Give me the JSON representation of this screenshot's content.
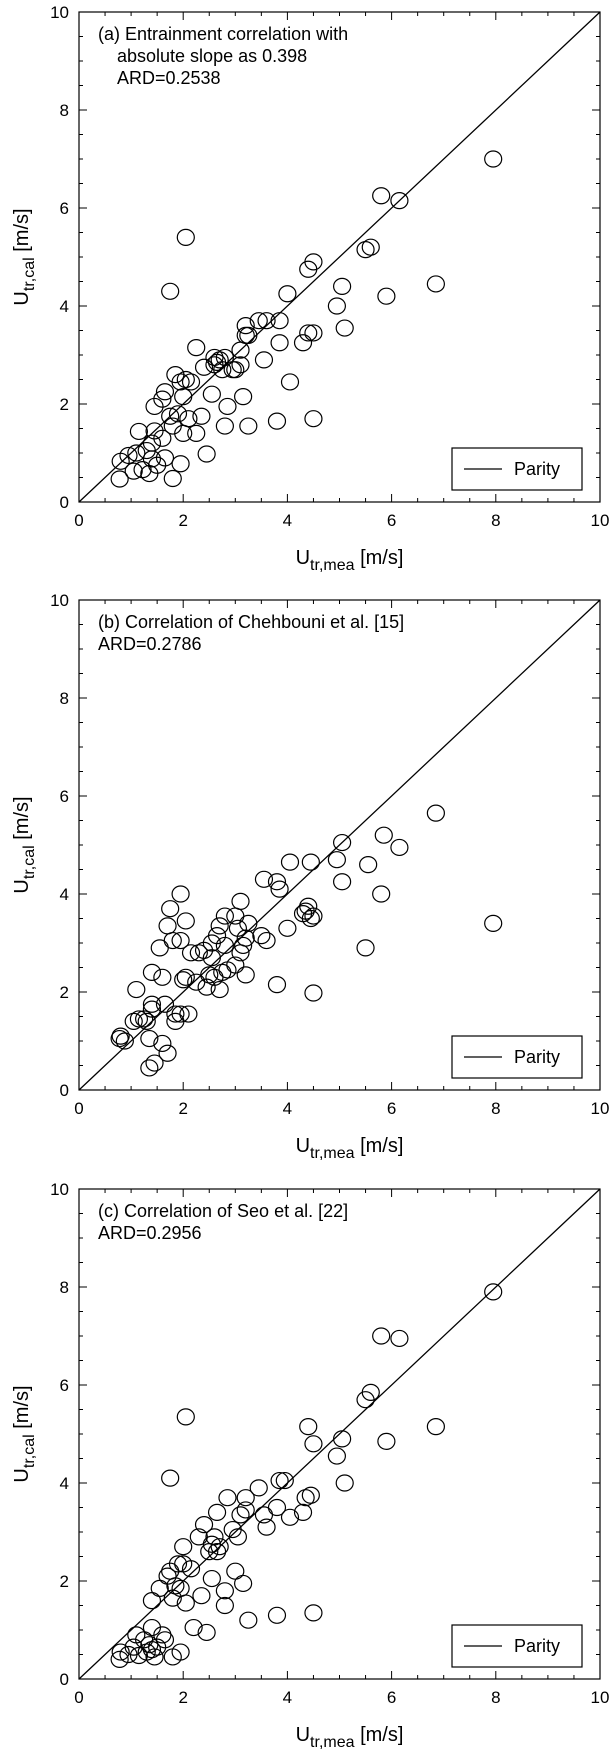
{
  "chart_data": [
    {
      "type": "scatter",
      "title": "(a) Entrainment correlation with",
      "subtitle": "absolute slope as 0.398",
      "annotation": "ARD=0.2538",
      "xlabel_main": "U",
      "xlabel_sub": "tr,mea",
      "xlabel_unit": "[m/s]",
      "ylabel_main": "U",
      "ylabel_sub": "tr,cal",
      "ylabel_unit": "[m/s]",
      "xlim": [
        0,
        10
      ],
      "ylim": [
        0,
        10
      ],
      "x_ticks": [
        "0",
        "2",
        "4",
        "6",
        "8",
        "10"
      ],
      "y_ticks": [
        "0",
        "2",
        "4",
        "6",
        "8",
        "10"
      ],
      "legend": {
        "label": "Parity",
        "placement": "bottom-right"
      },
      "parity_line": [
        [
          0,
          0
        ],
        [
          10,
          10
        ]
      ],
      "points": [
        [
          0.78,
          0.47
        ],
        [
          0.8,
          0.83
        ],
        [
          0.95,
          0.95
        ],
        [
          1.05,
          0.63
        ],
        [
          1.1,
          1.0
        ],
        [
          1.15,
          1.44
        ],
        [
          1.22,
          0.66
        ],
        [
          1.3,
          1.05
        ],
        [
          1.35,
          0.58
        ],
        [
          1.4,
          0.88
        ],
        [
          1.4,
          1.2
        ],
        [
          1.45,
          1.45
        ],
        [
          1.45,
          1.95
        ],
        [
          1.5,
          0.75
        ],
        [
          1.6,
          1.3
        ],
        [
          1.6,
          2.1
        ],
        [
          1.65,
          0.9
        ],
        [
          1.65,
          2.25
        ],
        [
          1.75,
          1.75
        ],
        [
          1.8,
          0.48
        ],
        [
          1.8,
          1.55
        ],
        [
          1.85,
          2.6
        ],
        [
          1.9,
          1.8
        ],
        [
          1.95,
          0.78
        ],
        [
          1.95,
          2.45
        ],
        [
          2.0,
          2.15
        ],
        [
          2.0,
          1.4
        ],
        [
          2.05,
          2.5
        ],
        [
          2.1,
          1.7
        ],
        [
          2.15,
          2.45
        ],
        [
          2.25,
          1.4
        ],
        [
          2.25,
          3.15
        ],
        [
          2.35,
          1.75
        ],
        [
          2.4,
          2.75
        ],
        [
          2.45,
          0.98
        ],
        [
          2.55,
          2.2
        ],
        [
          2.6,
          2.95
        ],
        [
          2.6,
          2.8
        ],
        [
          2.65,
          2.85
        ],
        [
          2.7,
          2.9
        ],
        [
          2.75,
          2.7
        ],
        [
          2.8,
          1.55
        ],
        [
          2.8,
          2.95
        ],
        [
          2.85,
          1.95
        ],
        [
          2.95,
          2.7
        ],
        [
          3.0,
          2.7
        ],
        [
          3.1,
          3.1
        ],
        [
          3.1,
          2.8
        ],
        [
          3.15,
          2.15
        ],
        [
          3.2,
          3.6
        ],
        [
          3.2,
          3.4
        ],
        [
          3.25,
          3.4
        ],
        [
          3.25,
          1.55
        ],
        [
          3.45,
          3.7
        ],
        [
          3.55,
          2.9
        ],
        [
          3.6,
          3.7
        ],
        [
          3.8,
          1.65
        ],
        [
          3.85,
          3.25
        ],
        [
          3.85,
          3.7
        ],
        [
          4.0,
          4.25
        ],
        [
          4.05,
          2.45
        ],
        [
          4.3,
          3.25
        ],
        [
          4.4,
          3.45
        ],
        [
          4.4,
          4.75
        ],
        [
          4.5,
          3.45
        ],
        [
          4.5,
          1.7
        ],
        [
          4.5,
          4.9
        ],
        [
          4.95,
          4.0
        ],
        [
          5.05,
          4.4
        ],
        [
          5.1,
          3.55
        ],
        [
          5.5,
          5.15
        ],
        [
          5.6,
          5.2
        ],
        [
          5.8,
          6.25
        ],
        [
          5.9,
          4.2
        ],
        [
          6.15,
          6.15
        ],
        [
          6.85,
          4.45
        ],
        [
          7.95,
          7.0
        ],
        [
          1.75,
          4.3
        ],
        [
          2.05,
          5.4
        ]
      ]
    },
    {
      "type": "scatter",
      "title": "(b) Correlation of Chehbouni et al. [15]",
      "annotation": "ARD=0.2786",
      "xlabel_main": "U",
      "xlabel_sub": "tr,mea",
      "xlabel_unit": "[m/s]",
      "ylabel_main": "U",
      "ylabel_sub": "tr,cal",
      "ylabel_unit": "[m/s]",
      "xlim": [
        0,
        10
      ],
      "ylim": [
        0,
        10
      ],
      "x_ticks": [
        "0",
        "2",
        "4",
        "6",
        "8",
        "10"
      ],
      "y_ticks": [
        "0",
        "2",
        "4",
        "6",
        "8",
        "10"
      ],
      "legend": {
        "label": "Parity",
        "placement": "bottom-right"
      },
      "parity_line": [
        [
          0,
          0
        ],
        [
          10,
          10
        ]
      ],
      "points": [
        [
          0.78,
          1.05
        ],
        [
          0.8,
          1.1
        ],
        [
          0.88,
          1.0
        ],
        [
          1.05,
          1.4
        ],
        [
          1.1,
          2.05
        ],
        [
          1.15,
          1.45
        ],
        [
          1.25,
          1.45
        ],
        [
          1.3,
          1.4
        ],
        [
          1.35,
          0.45
        ],
        [
          1.35,
          1.05
        ],
        [
          1.4,
          1.65
        ],
        [
          1.4,
          1.75
        ],
        [
          1.4,
          2.4
        ],
        [
          1.45,
          0.55
        ],
        [
          1.55,
          2.9
        ],
        [
          1.6,
          0.95
        ],
        [
          1.6,
          2.3
        ],
        [
          1.65,
          1.75
        ],
        [
          1.7,
          0.75
        ],
        [
          1.7,
          3.35
        ],
        [
          1.75,
          3.7
        ],
        [
          1.8,
          3.05
        ],
        [
          1.85,
          1.4
        ],
        [
          1.85,
          1.55
        ],
        [
          1.95,
          1.55
        ],
        [
          1.95,
          4.0
        ],
        [
          1.95,
          3.05
        ],
        [
          2.0,
          2.25
        ],
        [
          2.05,
          2.3
        ],
        [
          2.05,
          3.45
        ],
        [
          2.1,
          1.55
        ],
        [
          2.15,
          2.8
        ],
        [
          2.25,
          2.2
        ],
        [
          2.3,
          2.8
        ],
        [
          2.4,
          2.85
        ],
        [
          2.45,
          2.1
        ],
        [
          2.5,
          2.35
        ],
        [
          2.55,
          3.0
        ],
        [
          2.55,
          2.7
        ],
        [
          2.6,
          2.3
        ],
        [
          2.65,
          3.15
        ],
        [
          2.7,
          2.05
        ],
        [
          2.7,
          3.35
        ],
        [
          2.75,
          2.4
        ],
        [
          2.8,
          2.95
        ],
        [
          2.8,
          3.55
        ],
        [
          2.85,
          2.45
        ],
        [
          3.0,
          3.55
        ],
        [
          3.0,
          2.55
        ],
        [
          3.05,
          3.3
        ],
        [
          3.1,
          2.8
        ],
        [
          3.1,
          3.85
        ],
        [
          3.15,
          2.95
        ],
        [
          3.2,
          2.35
        ],
        [
          3.2,
          3.1
        ],
        [
          3.25,
          3.4
        ],
        [
          3.5,
          3.15
        ],
        [
          3.55,
          4.3
        ],
        [
          3.6,
          3.05
        ],
        [
          3.8,
          4.25
        ],
        [
          3.8,
          2.15
        ],
        [
          3.85,
          4.1
        ],
        [
          4.0,
          3.3
        ],
        [
          4.05,
          4.65
        ],
        [
          4.3,
          3.6
        ],
        [
          4.35,
          3.65
        ],
        [
          4.4,
          3.75
        ],
        [
          4.45,
          3.5
        ],
        [
          4.45,
          4.65
        ],
        [
          4.5,
          1.98
        ],
        [
          4.5,
          3.55
        ],
        [
          4.95,
          4.7
        ],
        [
          5.05,
          4.25
        ],
        [
          5.05,
          5.05
        ],
        [
          5.5,
          2.9
        ],
        [
          5.55,
          4.6
        ],
        [
          5.8,
          4.0
        ],
        [
          5.85,
          5.2
        ],
        [
          6.15,
          4.95
        ],
        [
          6.85,
          5.65
        ],
        [
          7.95,
          3.4
        ]
      ]
    },
    {
      "type": "scatter",
      "title": "(c) Correlation of Seo et al. [22]",
      "annotation": "ARD=0.2956",
      "xlabel_main": "U",
      "xlabel_sub": "tr,mea",
      "xlabel_unit": "[m/s]",
      "ylabel_main": "U",
      "ylabel_sub": "tr,cal",
      "ylabel_unit": "[m/s]",
      "xlim": [
        0,
        10
      ],
      "ylim": [
        0,
        10
      ],
      "x_ticks": [
        "0",
        "2",
        "4",
        "6",
        "8",
        "10"
      ],
      "y_ticks": [
        "0",
        "2",
        "4",
        "6",
        "8",
        "10"
      ],
      "legend": {
        "label": "Parity",
        "placement": "bottom-right"
      },
      "parity_line": [
        [
          0,
          0
        ],
        [
          10,
          10
        ]
      ],
      "points": [
        [
          0.78,
          0.4
        ],
        [
          0.8,
          0.55
        ],
        [
          0.95,
          0.5
        ],
        [
          1.05,
          0.65
        ],
        [
          1.1,
          0.9
        ],
        [
          1.15,
          0.48
        ],
        [
          1.25,
          0.8
        ],
        [
          1.3,
          0.55
        ],
        [
          1.35,
          0.7
        ],
        [
          1.4,
          0.6
        ],
        [
          1.4,
          1.05
        ],
        [
          1.4,
          1.6
        ],
        [
          1.45,
          0.45
        ],
        [
          1.5,
          0.65
        ],
        [
          1.55,
          1.85
        ],
        [
          1.6,
          0.9
        ],
        [
          1.65,
          0.8
        ],
        [
          1.7,
          2.1
        ],
        [
          1.75,
          2.2
        ],
        [
          1.8,
          0.45
        ],
        [
          1.8,
          1.65
        ],
        [
          1.85,
          1.9
        ],
        [
          1.9,
          2.35
        ],
        [
          1.95,
          0.55
        ],
        [
          1.95,
          1.85
        ],
        [
          2.0,
          2.7
        ],
        [
          2.0,
          2.35
        ],
        [
          2.05,
          1.55
        ],
        [
          2.15,
          2.25
        ],
        [
          2.2,
          1.05
        ],
        [
          2.3,
          2.9
        ],
        [
          2.35,
          1.7
        ],
        [
          2.4,
          3.15
        ],
        [
          2.45,
          0.95
        ],
        [
          2.5,
          2.6
        ],
        [
          2.55,
          2.05
        ],
        [
          2.55,
          2.75
        ],
        [
          2.6,
          2.9
        ],
        [
          2.65,
          3.4
        ],
        [
          2.65,
          2.6
        ],
        [
          2.7,
          2.7
        ],
        [
          2.8,
          1.5
        ],
        [
          2.8,
          1.8
        ],
        [
          2.85,
          3.7
        ],
        [
          2.95,
          3.05
        ],
        [
          3.0,
          2.2
        ],
        [
          3.05,
          2.9
        ],
        [
          3.1,
          3.35
        ],
        [
          3.15,
          1.95
        ],
        [
          3.2,
          3.45
        ],
        [
          3.2,
          3.7
        ],
        [
          3.25,
          1.2
        ],
        [
          3.45,
          3.9
        ],
        [
          3.55,
          3.35
        ],
        [
          3.6,
          3.1
        ],
        [
          3.8,
          1.3
        ],
        [
          3.8,
          3.5
        ],
        [
          3.85,
          4.05
        ],
        [
          3.95,
          4.05
        ],
        [
          4.05,
          3.3
        ],
        [
          4.3,
          3.4
        ],
        [
          4.35,
          3.7
        ],
        [
          4.4,
          5.15
        ],
        [
          4.45,
          3.75
        ],
        [
          4.5,
          4.8
        ],
        [
          4.5,
          1.35
        ],
        [
          4.95,
          4.55
        ],
        [
          5.05,
          4.9
        ],
        [
          5.1,
          4.0
        ],
        [
          5.5,
          5.7
        ],
        [
          5.6,
          5.85
        ],
        [
          5.8,
          7.0
        ],
        [
          5.9,
          4.85
        ],
        [
          6.15,
          6.95
        ],
        [
          6.85,
          5.15
        ],
        [
          7.95,
          7.9
        ],
        [
          1.75,
          4.1
        ],
        [
          2.05,
          5.35
        ]
      ]
    }
  ]
}
